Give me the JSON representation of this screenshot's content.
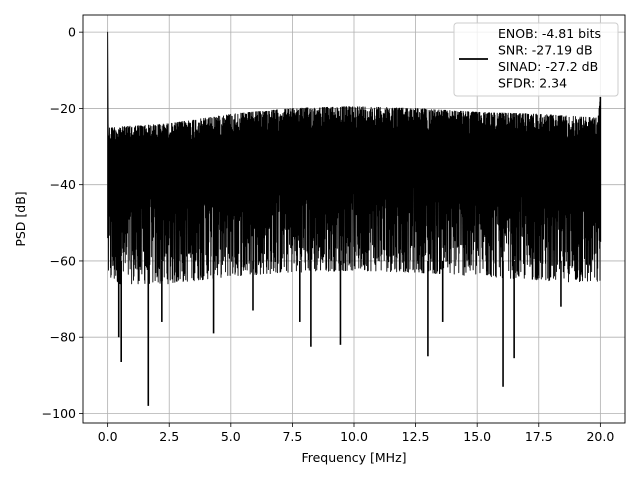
{
  "chart_data": {
    "type": "line",
    "title": "",
    "xlabel": "Frequency [MHz]",
    "ylabel": "PSD [dB]",
    "xlim": [
      -1.0,
      21.0
    ],
    "ylim": [
      -102.5,
      4.5
    ],
    "x_ticks": [
      0.0,
      2.5,
      5.0,
      7.5,
      10.0,
      12.5,
      15.0,
      17.5,
      20.0
    ],
    "x_tick_labels": [
      "0.0",
      "2.5",
      "5.0",
      "7.5",
      "10.0",
      "12.5",
      "15.0",
      "17.5",
      "20.0"
    ],
    "y_ticks": [
      0,
      -20,
      -40,
      -60,
      -80,
      -100
    ],
    "y_tick_labels": [
      "0",
      "−20",
      "−40",
      "−60",
      "−80",
      "−100"
    ],
    "grid": true,
    "legend_position": "upper-right",
    "legend": [
      "ENOB: -4.81 bits",
      "SNR: -27.19 dB",
      "SINAD: -27.2 dB",
      "SFDR: 2.34"
    ],
    "color": "#000000",
    "series": [
      {
        "x_range": [
          0.0,
          20.0
        ],
        "fundamental_peak": {
          "x": 0.0,
          "y": 0.0
        },
        "upper_envelope": {
          "x": [
            0.1,
            2.5,
            5.0,
            7.5,
            10.0,
            12.5,
            15.0,
            17.5,
            19.9,
            20.0
          ],
          "y": [
            -25.0,
            -24.0,
            -21.5,
            -20.0,
            -19.5,
            -20.0,
            -21.0,
            -21.5,
            -22.5,
            -17.0
          ]
        },
        "lower_envelope": {
          "x": [
            0.1,
            2.5,
            5.0,
            7.5,
            10.0,
            12.5,
            15.0,
            17.5,
            20.0
          ],
          "y": [
            -66.0,
            -66.0,
            -64.0,
            -63.0,
            -62.5,
            -63.0,
            -64.0,
            -65.0,
            -66.0
          ]
        },
        "deep_dips": [
          {
            "x": 0.55,
            "y": -86.5
          },
          {
            "x": 0.45,
            "y": -80.0
          },
          {
            "x": 1.65,
            "y": -98.0
          },
          {
            "x": 2.2,
            "y": -76.0
          },
          {
            "x": 4.3,
            "y": -79.0
          },
          {
            "x": 7.8,
            "y": -76.0
          },
          {
            "x": 8.25,
            "y": -82.5
          },
          {
            "x": 9.45,
            "y": -82.0
          },
          {
            "x": 13.0,
            "y": -85.0
          },
          {
            "x": 16.05,
            "y": -93.0
          },
          {
            "x": 16.5,
            "y": -85.5
          },
          {
            "x": 13.6,
            "y": -76.0
          },
          {
            "x": 18.4,
            "y": -72.0
          },
          {
            "x": 5.9,
            "y": -73.0
          }
        ]
      }
    ]
  }
}
